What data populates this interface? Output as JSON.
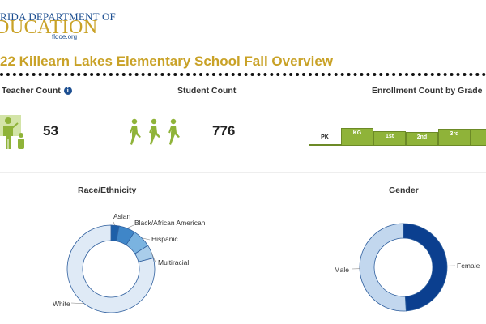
{
  "header": {
    "logo_line1": "RIDA DEPARTMENT OF",
    "logo_line2": "DUCATION",
    "logo_url": "fldoe.org",
    "title": "22 Killearn Lakes Elementary School Fall Overview"
  },
  "kpis": {
    "teacher_label": "Teacher Count",
    "teacher_value": "53",
    "student_label": "Student Count",
    "student_value": "776",
    "info_glyph": "i"
  },
  "enrollment": {
    "title": "Enrollment Count by Grade",
    "grades": [
      {
        "label": "PK",
        "level": 0.1,
        "color": "#ffffff"
      },
      {
        "label": "KG",
        "level": 0.55,
        "color": "#8fb339"
      },
      {
        "label": "1st",
        "level": 0.45,
        "color": "#8fb339"
      },
      {
        "label": "2nd",
        "level": 0.42,
        "color": "#8fb339"
      },
      {
        "label": "3rd",
        "level": 0.52,
        "color": "#8fb339"
      },
      {
        "label": "",
        "level": 0.52,
        "color": "#8fb339"
      }
    ]
  },
  "race": {
    "title": "Race/Ethnicity",
    "slices": [
      {
        "label": "Asian",
        "share": 0.03,
        "color": "#1d5fa8"
      },
      {
        "label": "Black/African American",
        "share": 0.06,
        "color": "#3f86c8"
      },
      {
        "label": "Hispanic",
        "share": 0.07,
        "color": "#7ab3e0"
      },
      {
        "label": "Multiracial",
        "share": 0.05,
        "color": "#a9cdea"
      },
      {
        "label": "White",
        "share": 0.79,
        "color": "#dfeaf6"
      }
    ]
  },
  "gender": {
    "title": "Gender",
    "slices": [
      {
        "label": "Female",
        "share": 0.49,
        "color": "#0b3f8f"
      },
      {
        "label": "Male",
        "share": 0.51,
        "color": "#c2d7ee"
      }
    ]
  }
}
